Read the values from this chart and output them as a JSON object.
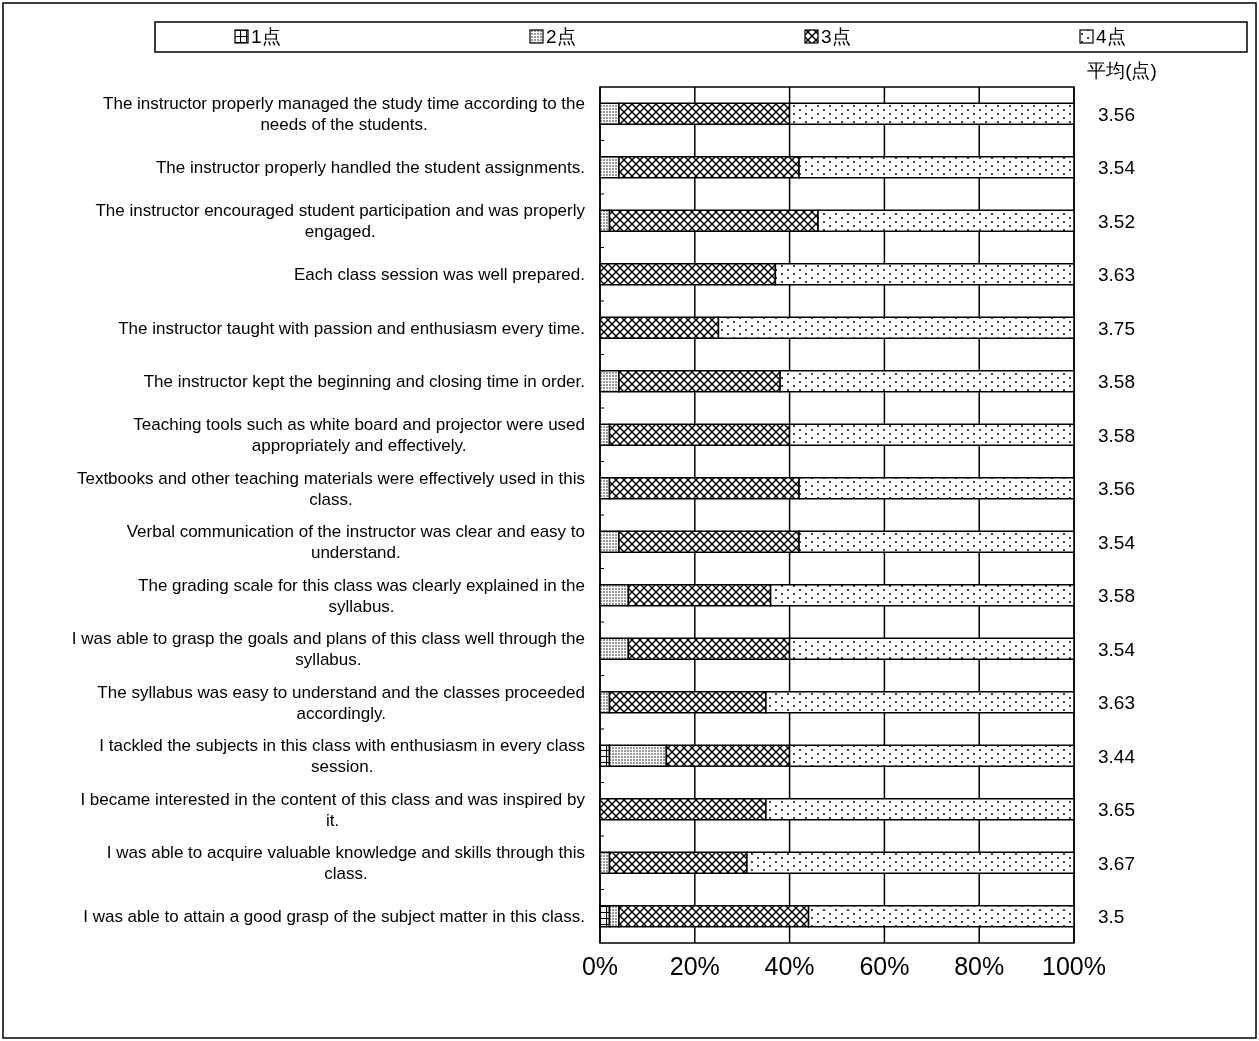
{
  "chart_data": {
    "type": "bar",
    "orientation": "horizontal",
    "stacked": true,
    "categories": [
      "The instructor properly managed the study time according to the needs of the students.",
      "The instructor properly handled the student assignments.",
      "The instructor encouraged student participation and was properly engaged.",
      "Each class session was well prepared.",
      "The instructor taught with passion and enthusiasm every time.",
      "The instructor kept the beginning and closing time in order.",
      "Teaching tools such as white board and projector were used appropriately and effectively.",
      "Textbooks and other teaching materials were effectively used in this class.",
      "Verbal communication of the instructor was clear and easy to understand.",
      "The grading scale for this class was clearly explained in the syllabus.",
      "I was able to grasp the goals and plans of this class well through the syllabus.",
      "The syllabus was easy to understand and the classes proceeded accordingly.",
      "I tackled the subjects in this class with enthusiasm in every class session.",
      "I became interested in the content of this class and was inspired by it.",
      "I was able to acquire valuable knowledge and skills through this class.",
      "I was able to attain a good grasp of the subject matter in this class."
    ],
    "series": [
      {
        "name": "1点",
        "color": "#000000",
        "values": [
          0,
          0,
          0,
          0,
          0,
          0,
          0,
          0,
          0,
          0,
          0,
          0,
          2,
          0,
          0,
          2
        ]
      },
      {
        "name": "2点",
        "color": "#000000",
        "values": [
          4,
          4,
          2,
          0,
          0,
          4,
          2,
          2,
          4,
          6,
          6,
          2,
          12,
          0,
          2,
          2
        ]
      },
      {
        "name": "3点",
        "color": "#000000",
        "values": [
          36,
          38,
          44,
          37,
          25,
          34,
          38,
          40,
          38,
          30,
          34,
          33,
          26,
          35,
          29,
          40
        ]
      },
      {
        "name": "4点",
        "color": "#000000",
        "values": [
          60,
          58,
          54,
          63,
          75,
          62,
          60,
          58,
          58,
          64,
          60,
          65,
          60,
          65,
          69,
          56
        ]
      }
    ],
    "xlim": [
      0,
      100
    ],
    "xticks": [
      {
        "value": 0,
        "label": "0%"
      },
      {
        "value": 20,
        "label": "20%"
      },
      {
        "value": 40,
        "label": "40%"
      },
      {
        "value": 60,
        "label": "60%"
      },
      {
        "value": 80,
        "label": "80%"
      },
      {
        "value": 100,
        "label": "100%"
      }
    ],
    "grid": "x",
    "legend": "top",
    "annotations": [
      "平均(点)",
      "3.56",
      "3.54",
      "3.52",
      "3.63",
      "3.75",
      "3.58",
      "3.58",
      "3.56",
      "3.54",
      "3.58",
      "3.54",
      "3.63",
      "3.44",
      "3.65",
      "3.67",
      "3.5"
    ]
  }
}
